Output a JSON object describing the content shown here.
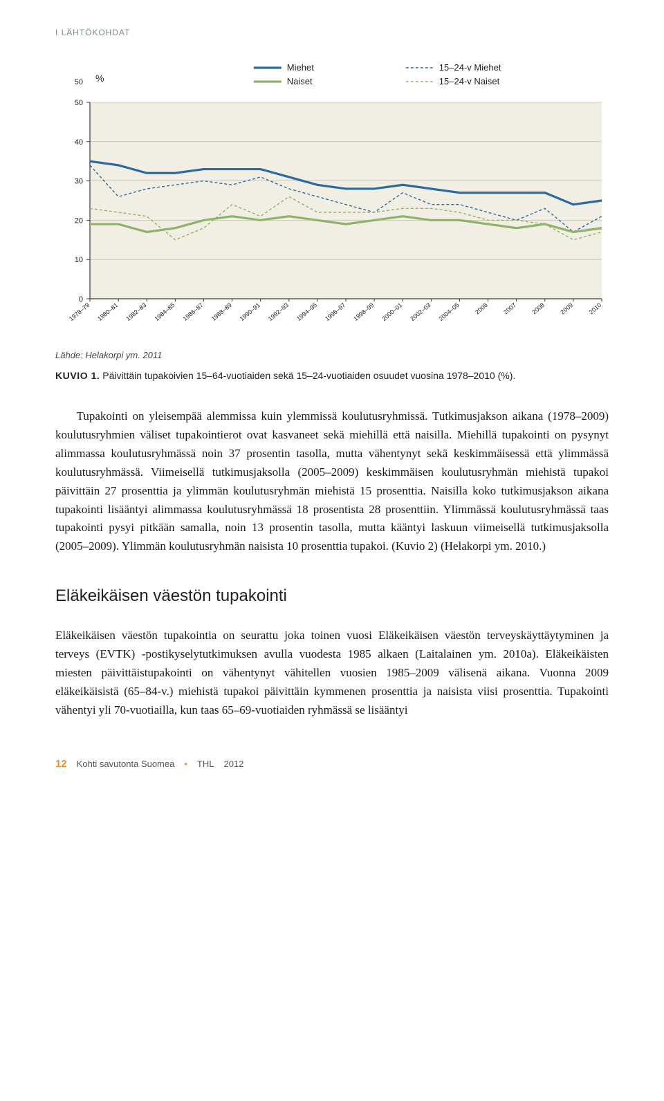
{
  "running_head": "I  LÄHTÖKOHDAT",
  "chart": {
    "type": "line",
    "ylabel": "%",
    "xlim": [
      0,
      19
    ],
    "ylim": [
      0,
      50
    ],
    "ytick_step": 10,
    "yticks": [
      "0",
      "10",
      "20",
      "30",
      "40",
      "50"
    ],
    "xticks": [
      "1978–79",
      "1980–81",
      "1982–83",
      "1984–85",
      "1986–87",
      "1988–89",
      "1990–91",
      "1992–93",
      "1994–95",
      "1996–97",
      "1998–99",
      "2000–01",
      "2002–03",
      "2004–05",
      "2006",
      "2007",
      "2008",
      "2009",
      "2010"
    ],
    "panel_bg": "#f1efe3",
    "grid_color": "#8a8f78",
    "axis_color": "#3a3a3a",
    "label_fontsize": 11,
    "tick_fontsize": 9,
    "legend_fontsize": 13,
    "series": [
      {
        "name": "Miehet",
        "label": "Miehet",
        "color": "#2b6aa0",
        "width": 3.2,
        "dash": "",
        "values": [
          35,
          34,
          32,
          32,
          33,
          33,
          33,
          31,
          29,
          28,
          28,
          29,
          28,
          27,
          27,
          27,
          27,
          24,
          25
        ]
      },
      {
        "name": "15-24-v Miehet",
        "label": "15–24-v Miehet",
        "color": "#2b6aa0",
        "width": 1.4,
        "dash": "4 3",
        "values": [
          34,
          26,
          28,
          29,
          30,
          29,
          31,
          28,
          26,
          24,
          22,
          27,
          24,
          24,
          22,
          20,
          23,
          17,
          21
        ]
      },
      {
        "name": "Naiset",
        "label": "Naiset",
        "color": "#8fb26a",
        "width": 3.2,
        "dash": "",
        "values": [
          19,
          19,
          17,
          18,
          20,
          21,
          20,
          21,
          20,
          19,
          20,
          21,
          20,
          20,
          19,
          18,
          19,
          17,
          18
        ]
      },
      {
        "name": "15-24-v Naiset",
        "label": "15–24-v Naiset",
        "color": "#8fb26a",
        "width": 1.4,
        "dash": "4 3",
        "values": [
          23,
          22,
          21,
          15,
          18,
          24,
          21,
          26,
          22,
          22,
          22,
          23,
          23,
          22,
          20,
          20,
          19,
          15,
          17
        ]
      }
    ]
  },
  "source_line": "Lähde: Helakorpi ym. 2011",
  "caption_lead": "KUVIO 1.",
  "caption_text": "Päivittäin tupakoivien 15–64-vuotiaiden sekä 15–24-vuotiaiden osuudet vuosina 1978–2010 (%).",
  "para1": "Tupakointi on yleisempää alemmissa kuin ylemmissä koulutusryhmissä. Tutkimusjakson aikana (1978–2009) koulutusryhmien väliset tupakointierot ovat kasvaneet sekä miehillä että naisilla. Miehillä tupakointi on pysynyt alimmassa koulutusryhmässä noin 37 prosentin tasolla, mutta vähentynyt sekä keskimmäisessä että ylimmässä koulutusryhmässä. Viimeisellä tutkimusjaksolla (2005–2009) keskimmäisen koulutusryhmän miehistä tupakoi päivittäin 27 prosenttia ja ylimmän koulutusryhmän miehistä 15 prosenttia. Naisilla koko tutkimusjakson aikana tupakointi lisääntyi alimmassa koulutusryhmässä 18 prosentista 28 prosenttiin. Ylimmässä koulutusryhmässä taas tupakointi pysyi pitkään samalla, noin 13 prosentin tasolla, mutta kääntyi laskuun viimeisellä tutkimusjaksolla (2005–2009). Ylimmän koulutusryhmän naisista 10 prosenttia tupakoi. (Kuvio 2) (Helakorpi ym. 2010.)",
  "section_heading": "Eläkeikäisen väestön tupakointi",
  "para2": "Eläkeikäisen väestön tupakointia on seurattu joka toinen vuosi Eläkeikäisen väestön terveyskäyttäytyminen ja terveys (EVTK) -postikyselytutkimuksen avulla vuodesta 1985 alkaen (Laitalainen ym. 2010a). Eläkeikäisten miesten päivittäistupakointi on vähentynyt vähitellen vuosien 1985–2009 välisenä aikana. Vuonna 2009 eläkeikäisistä (65–84-v.) miehistä tupakoi päivittäin kymmenen prosenttia ja naisista viisi prosenttia. Tupakointi vähentyi yli 70-vuotiailla, kun taas 65–69-vuotiaiden ryhmässä se lisääntyi",
  "footer": {
    "page_number": "12",
    "book_title": "Kohti savutonta Suomea",
    "publisher": "THL",
    "year": "2012"
  }
}
